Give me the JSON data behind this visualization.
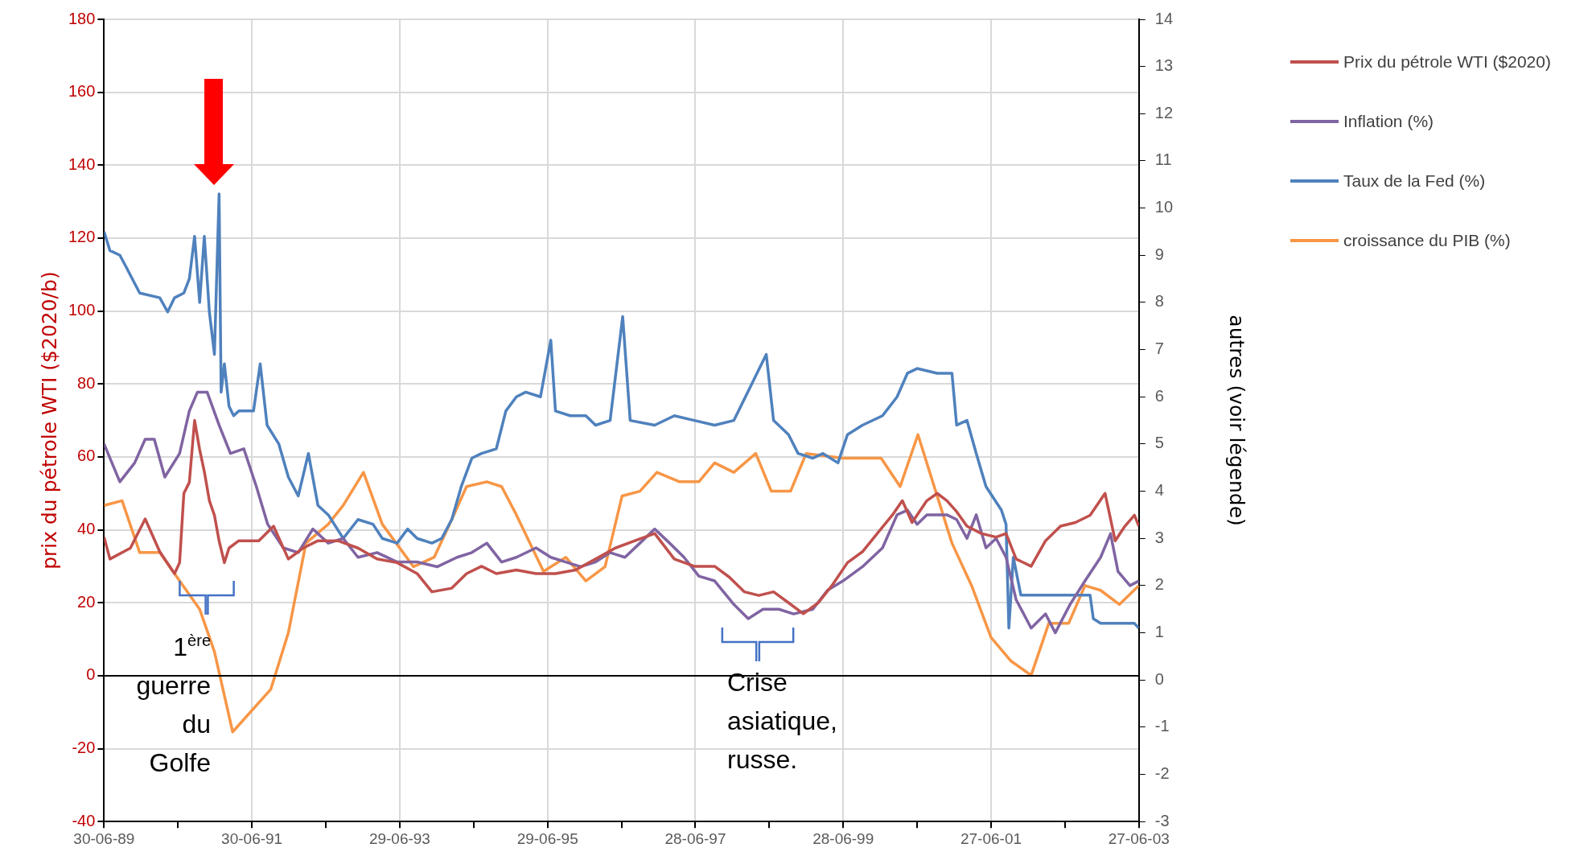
{
  "chart_data": {
    "type": "line",
    "ylabel": "prix du pétrole WTI ($2020/b)",
    "y2label": "autres (voir légende)",
    "xlim": [
      "1989-06-30",
      "2003-06-27"
    ],
    "xticks": [
      {
        "value": "1989-06-30",
        "label": "30-06-89"
      },
      {
        "value": "1990-06-30",
        "label": null
      },
      {
        "value": "1991-06-30",
        "label": "30-06-91"
      },
      {
        "value": "1992-06-29",
        "label": null
      },
      {
        "value": "1993-06-29",
        "label": "29-06-93"
      },
      {
        "value": "1994-06-29",
        "label": null
      },
      {
        "value": "1995-06-29",
        "label": "29-06-95"
      },
      {
        "value": "1996-06-28",
        "label": null
      },
      {
        "value": "1997-06-28",
        "label": "28-06-97"
      },
      {
        "value": "1998-06-28",
        "label": null
      },
      {
        "value": "1999-06-28",
        "label": "28-06-99"
      },
      {
        "value": "2000-06-27",
        "label": null
      },
      {
        "value": "2001-06-27",
        "label": "27-06-01"
      },
      {
        "value": "2002-06-27",
        "label": null
      },
      {
        "value": "2003-06-27",
        "label": "27-06-03"
      }
    ],
    "ylim": [
      -40,
      180
    ],
    "yticks": [
      -40,
      -20,
      0,
      20,
      40,
      60,
      80,
      100,
      120,
      140,
      160,
      180
    ],
    "y2lim": [
      -3,
      14
    ],
    "y2ticks": [
      -3,
      -2,
      -1,
      0,
      1,
      2,
      3,
      4,
      5,
      6,
      7,
      8,
      9,
      10,
      11,
      12,
      13,
      14
    ],
    "grid": true,
    "legend": "top right",
    "marker": "none",
    "line_style": "solid",
    "ref_lines": [
      {
        "axis": "y",
        "value": 0,
        "color": "#000000"
      }
    ],
    "annotations": [
      "1$^{ère}$ guerre du Golfe",
      "Crise asiatique, russe."
    ],
    "series": [
      {
        "name": "Prix du pétrole WTI ($2020)",
        "color": "#c0504d",
        "x": [
          "1989-06-30",
          "1989-07-29",
          "1989-11-07",
          "1990-01-19",
          "1990-04-01",
          "1990-06-13",
          "1990-07-08",
          "1990-07-29",
          "1990-08-25",
          "1990-09-20",
          "1990-10-15",
          "1990-11-07",
          "1990-12-02",
          "1990-12-27",
          "1991-01-19",
          "1991-02-14",
          "1991-03-09",
          "1991-04-26",
          "1991-08-03",
          "1991-10-15",
          "1991-12-27",
          "1992-03-09",
          "1992-05-21",
          "1992-08-28",
          "1992-12-05",
          "1993-03-09",
          "1993-06-16",
          "1993-09-23",
          "1993-12-05",
          "1994-03-13",
          "1994-05-25",
          "1994-08-07",
          "1994-10-19",
          "1995-01-26",
          "1995-05-03",
          "1995-08-07",
          "1995-11-14",
          "1996-02-21",
          "1996-05-28",
          "1996-09-02",
          "1996-12-09",
          "1997-03-16",
          "1997-06-23",
          "1997-10-01",
          "1997-12-13",
          "1998-02-25",
          "1998-05-07",
          "1998-07-19",
          "1998-10-01",
          "1998-12-13",
          "1999-02-25",
          "1999-05-07",
          "1999-07-19",
          "1999-10-01",
          "1999-12-13",
          "2000-02-25",
          "2000-04-15",
          "2000-06-02",
          "2000-08-14",
          "2000-10-04",
          "2000-11-21",
          "2001-01-08",
          "2001-02-28",
          "2001-05-10",
          "2001-07-22",
          "2001-09-09",
          "2001-10-29",
          "2002-01-11",
          "2002-03-23",
          "2002-06-05",
          "2002-08-17",
          "2002-10-29",
          "2003-01-11",
          "2003-03-02",
          "2003-04-19",
          "2003-06-05",
          "2003-06-27"
        ],
        "values": [
          38,
          32,
          35,
          43,
          34,
          28,
          31,
          50,
          53,
          70,
          62,
          56,
          48,
          44,
          37,
          31,
          35,
          37,
          37,
          41,
          32,
          35,
          37,
          37,
          35,
          32,
          31,
          28,
          23,
          24,
          28,
          30,
          28,
          29,
          28,
          28,
          29,
          32,
          35,
          37,
          39,
          32,
          30,
          30,
          27,
          23,
          22,
          23,
          20,
          17,
          20,
          25,
          31,
          34,
          39,
          44,
          48,
          42,
          48,
          50,
          48,
          45,
          41,
          39,
          38,
          39,
          32,
          30,
          37,
          41,
          42,
          44,
          50,
          37,
          41,
          44,
          41
        ]
      },
      {
        "name": "Inflation (%)",
        "color": "#8064a2",
        "axis": "y2",
        "x": [
          "1989-06-30",
          "1989-09-16",
          "1989-11-28",
          "1990-01-19",
          "1990-03-05",
          "1990-04-26",
          "1990-07-08",
          "1990-08-25",
          "1990-10-04",
          "1990-11-21",
          "1991-01-19",
          "1991-03-16",
          "1991-05-21",
          "1991-07-22",
          "1991-09-16",
          "1991-12-02",
          "1992-02-14",
          "1992-04-26",
          "1992-07-11",
          "1992-09-23",
          "1992-12-05",
          "1993-03-09",
          "1993-06-16",
          "1993-09-23",
          "1994-01-01",
          "1994-04-08",
          "1994-06-20",
          "1994-09-02",
          "1994-11-14",
          "1995-01-26",
          "1995-05-03",
          "1995-07-15",
          "1995-09-27",
          "1995-12-09",
          "1996-02-21",
          "1996-05-03",
          "1996-07-15",
          "1996-09-27",
          "1996-12-09",
          "1997-02-21",
          "1997-05-03",
          "1997-07-15",
          "1997-10-01",
          "1998-01-04",
          "1998-03-16",
          "1998-05-28",
          "1998-08-14",
          "1998-10-26",
          "1999-01-29",
          "1999-04-11",
          "1999-06-27",
          "1999-10-01",
          "2000-01-08",
          "2000-03-20",
          "2000-05-10",
          "2000-06-27",
          "2000-08-14",
          "2000-10-04",
          "2000-11-21",
          "2001-01-08",
          "2001-02-28",
          "2001-04-15",
          "2001-06-02",
          "2001-07-22",
          "2001-09-09",
          "2001-10-29",
          "2002-01-11",
          "2002-03-23",
          "2002-05-10",
          "2002-07-22",
          "2002-10-04",
          "2002-12-20",
          "2003-02-07",
          "2003-03-16",
          "2003-05-14",
          "2003-06-27"
        ],
        "values": [
          5.0,
          4.2,
          4.6,
          5.1,
          5.1,
          4.3,
          4.8,
          5.7,
          6.1,
          6.1,
          5.4,
          4.8,
          4.9,
          4.1,
          3.3,
          2.8,
          2.7,
          3.2,
          2.9,
          3.0,
          2.6,
          2.7,
          2.5,
          2.5,
          2.4,
          2.6,
          2.7,
          2.9,
          2.5,
          2.6,
          2.8,
          2.6,
          2.5,
          2.4,
          2.5,
          2.7,
          2.6,
          2.9,
          3.2,
          2.9,
          2.6,
          2.2,
          2.1,
          1.6,
          1.3,
          1.5,
          1.5,
          1.4,
          1.5,
          1.9,
          2.1,
          2.4,
          2.8,
          3.5,
          3.6,
          3.3,
          3.5,
          3.5,
          3.5,
          3.4,
          3.0,
          3.5,
          2.8,
          3.0,
          2.6,
          1.7,
          1.1,
          1.4,
          1.0,
          1.6,
          2.1,
          2.6,
          3.1,
          2.3,
          2.0,
          2.1
        ]
      },
      {
        "name": "Taux de la Fed (%)",
        "color": "#4f81bd",
        "axis": "y2",
        "x": [
          "1989-06-30",
          "1989-07-29",
          "1989-09-16",
          "1989-10-11",
          "1989-12-23",
          "1990-04-01",
          "1990-05-10",
          "1990-06-13",
          "1990-07-29",
          "1990-08-25",
          "1990-09-20",
          "1990-10-15",
          "1990-11-07",
          "1990-12-02",
          "1990-12-27",
          "1991-01-19",
          "1991-01-29",
          "1991-02-14",
          "1991-03-09",
          "1991-04-01",
          "1991-04-26",
          "1991-07-08",
          "1991-08-10",
          "1991-09-13",
          "1991-11-10",
          "1991-12-27",
          "1992-02-14",
          "1992-04-04",
          "1992-05-21",
          "1992-07-11",
          "1992-09-23",
          "1992-12-05",
          "1993-02-17",
          "1993-04-04",
          "1993-06-16",
          "1993-08-07",
          "1993-09-23",
          "1993-12-05",
          "1994-01-22",
          "1994-03-13",
          "1994-04-29",
          "1994-06-20",
          "1994-08-07",
          "1994-10-19",
          "1994-12-05",
          "1995-01-26",
          "1995-03-13",
          "1995-05-25",
          "1995-07-15",
          "1995-08-07",
          "1995-10-19",
          "1996-01-04",
          "1996-02-21",
          "1996-05-03",
          "1996-07-04",
          "1996-08-10",
          "1996-12-09",
          "1997-03-16",
          "1997-06-23",
          "1997-10-01",
          "1998-01-04",
          "1998-06-13",
          "1998-07-19",
          "1998-10-01",
          "1998-11-17",
          "1999-01-29",
          "1999-03-20",
          "1999-06-02",
          "1999-07-19",
          "1999-10-01",
          "2000-01-08",
          "2000-03-20",
          "2000-05-10",
          "2000-06-27",
          "2000-10-04",
          "2000-12-16",
          "2001-01-08",
          "2001-02-28",
          "2001-04-15",
          "2001-06-02",
          "2001-08-17",
          "2001-09-09",
          "2001-09-23",
          "2001-10-15",
          "2001-11-21",
          "2002-04-19",
          "2002-10-29",
          "2002-11-14",
          "2002-12-20",
          "2003-06-05",
          "2003-06-27"
        ],
        "values": [
          9.5,
          9.1,
          9.0,
          8.8,
          8.2,
          8.1,
          7.8,
          8.1,
          8.2,
          8.5,
          9.4,
          8.0,
          9.4,
          7.8,
          6.9,
          10.3,
          6.1,
          6.7,
          5.8,
          5.6,
          5.7,
          5.7,
          6.7,
          5.4,
          5.0,
          4.3,
          3.9,
          4.8,
          3.7,
          3.5,
          3.0,
          3.4,
          3.3,
          3.0,
          2.9,
          3.2,
          3.0,
          2.9,
          3.0,
          3.4,
          4.1,
          4.7,
          4.8,
          4.9,
          5.7,
          6.0,
          6.1,
          6.0,
          7.2,
          5.7,
          5.6,
          5.6,
          5.4,
          5.5,
          7.7,
          5.5,
          5.4,
          5.6,
          5.5,
          5.4,
          5.5,
          6.9,
          5.5,
          5.2,
          4.8,
          4.7,
          4.8,
          4.6,
          5.2,
          5.4,
          5.6,
          6.0,
          6.5,
          6.6,
          6.5,
          6.5,
          5.4,
          5.5,
          4.8,
          4.1,
          3.6,
          3.3,
          1.1,
          2.6,
          1.8,
          1.8,
          1.8,
          1.3,
          1.2,
          1.2,
          1.1
        ]
      },
      {
        "name": "croissance du PIB (%)",
        "color": "#f79646",
        "axis": "y2",
        "x": [
          "1989-06-30",
          "1989-09-27",
          "1989-12-23",
          "1990-04-01",
          "1990-07-08",
          "1990-10-15",
          "1990-12-27",
          "1991-03-27",
          "1991-10-01",
          "1991-12-27",
          "1992-03-23",
          "1992-07-11",
          "1992-09-23",
          "1993-01-01",
          "1993-04-04",
          "1993-09-05",
          "1993-12-16",
          "1994-03-13",
          "1994-05-25",
          "1994-09-02",
          "1994-11-14",
          "1995-01-26",
          "1995-06-09",
          "1995-09-27",
          "1996-01-04",
          "1996-04-08",
          "1996-07-01",
          "1996-09-27",
          "1996-12-20",
          "1997-04-11",
          "1997-07-15",
          "1997-10-01",
          "1998-01-04",
          "1998-04-22",
          "1998-07-08",
          "1998-10-11",
          "1998-12-27",
          "1999-06-27",
          "2000-01-01",
          "2000-04-04",
          "2000-07-01",
          "2000-12-16",
          "2001-03-23",
          "2001-06-27",
          "2001-10-04",
          "2002-01-11",
          "2002-04-08",
          "2002-07-15",
          "2002-10-04",
          "2002-12-20",
          "2003-03-23",
          "2003-06-27"
        ],
        "values": [
          3.7,
          3.8,
          2.7,
          2.7,
          2.1,
          1.5,
          0.6,
          -1.1,
          -0.2,
          1.0,
          2.9,
          3.3,
          3.7,
          4.4,
          3.3,
          2.4,
          2.6,
          3.4,
          4.1,
          4.2,
          4.1,
          3.5,
          2.3,
          2.6,
          2.1,
          2.4,
          3.9,
          4.0,
          4.4,
          4.2,
          4.2,
          4.6,
          4.4,
          4.8,
          4.0,
          4.0,
          4.8,
          4.7,
          4.7,
          4.1,
          5.2,
          2.9,
          2.0,
          0.9,
          0.4,
          0.1,
          1.2,
          1.2,
          2.0,
          1.9,
          1.6,
          2.0
        ]
      }
    ]
  }
}
